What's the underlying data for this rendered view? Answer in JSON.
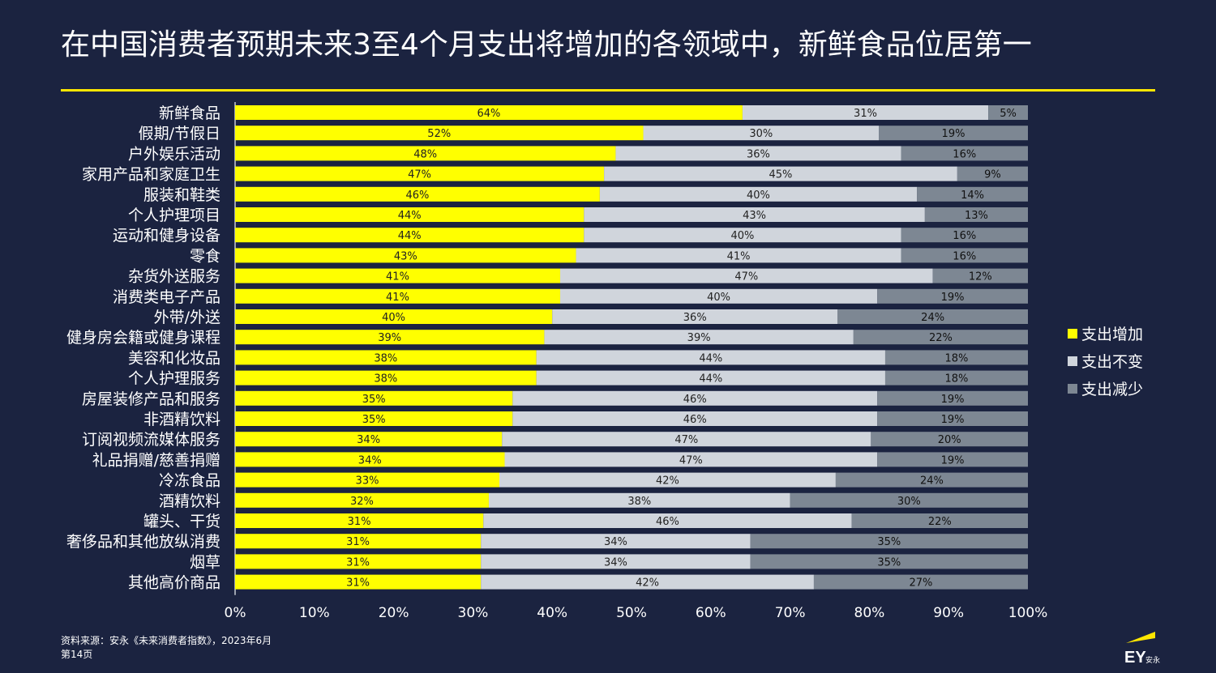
{
  "title": "在中国消费者预期未来3至4个月支出将增加的各领域中，新鲜食品位居第一",
  "colors": {
    "background": "#1b2340",
    "increase": "#ffff00",
    "unchanged": "#d0d5dc",
    "decrease": "#7d8793",
    "rule": "#ffe600"
  },
  "chart_data": {
    "type": "bar",
    "orientation": "horizontal",
    "stacked": "percent",
    "xlim": [
      0,
      100
    ],
    "x_ticks": [
      "0%",
      "10%",
      "20%",
      "30%",
      "40%",
      "50%",
      "60%",
      "70%",
      "80%",
      "90%",
      "100%"
    ],
    "legend_position": "right",
    "grid": false,
    "categories": [
      "新鲜食品",
      "假期/节假日",
      "户外娱乐活动",
      "家用产品和家庭卫生",
      "服装和鞋类",
      "个人护理项目",
      "运动和健身设备",
      "零食",
      "杂货外送服务",
      "消费类电子产品",
      "外带/外送",
      "健身房会籍或健身课程",
      "美容和化妆品",
      "个人护理服务",
      "房屋装修产品和服务",
      "非酒精饮料",
      "订阅视频流媒体服务",
      "礼品捐赠/慈善捐赠",
      "冷冻食品",
      "酒精饮料",
      "罐头、干货",
      "奢侈品和其他放纵消费",
      "烟草",
      "其他高价商品"
    ],
    "series": [
      {
        "name": "支出增加",
        "values": [
          64,
          52,
          48,
          47,
          46,
          44,
          44,
          43,
          41,
          41,
          40,
          39,
          38,
          38,
          35,
          35,
          34,
          34,
          33,
          32,
          31,
          31,
          31,
          31
        ]
      },
      {
        "name": "支出不变",
        "values": [
          31,
          30,
          36,
          45,
          40,
          43,
          40,
          41,
          47,
          40,
          36,
          39,
          44,
          44,
          46,
          46,
          47,
          47,
          42,
          38,
          46,
          34,
          34,
          42
        ]
      },
      {
        "name": "支出减少",
        "values": [
          5,
          19,
          16,
          9,
          14,
          13,
          16,
          16,
          12,
          19,
          24,
          22,
          18,
          18,
          19,
          19,
          20,
          19,
          24,
          30,
          22,
          35,
          35,
          27
        ]
      }
    ]
  },
  "footer": {
    "source": "资料来源：安永《未来消费者指数》，2023年6月",
    "page": "第14页"
  },
  "logo": {
    "text": "EY",
    "sub": "安永"
  }
}
